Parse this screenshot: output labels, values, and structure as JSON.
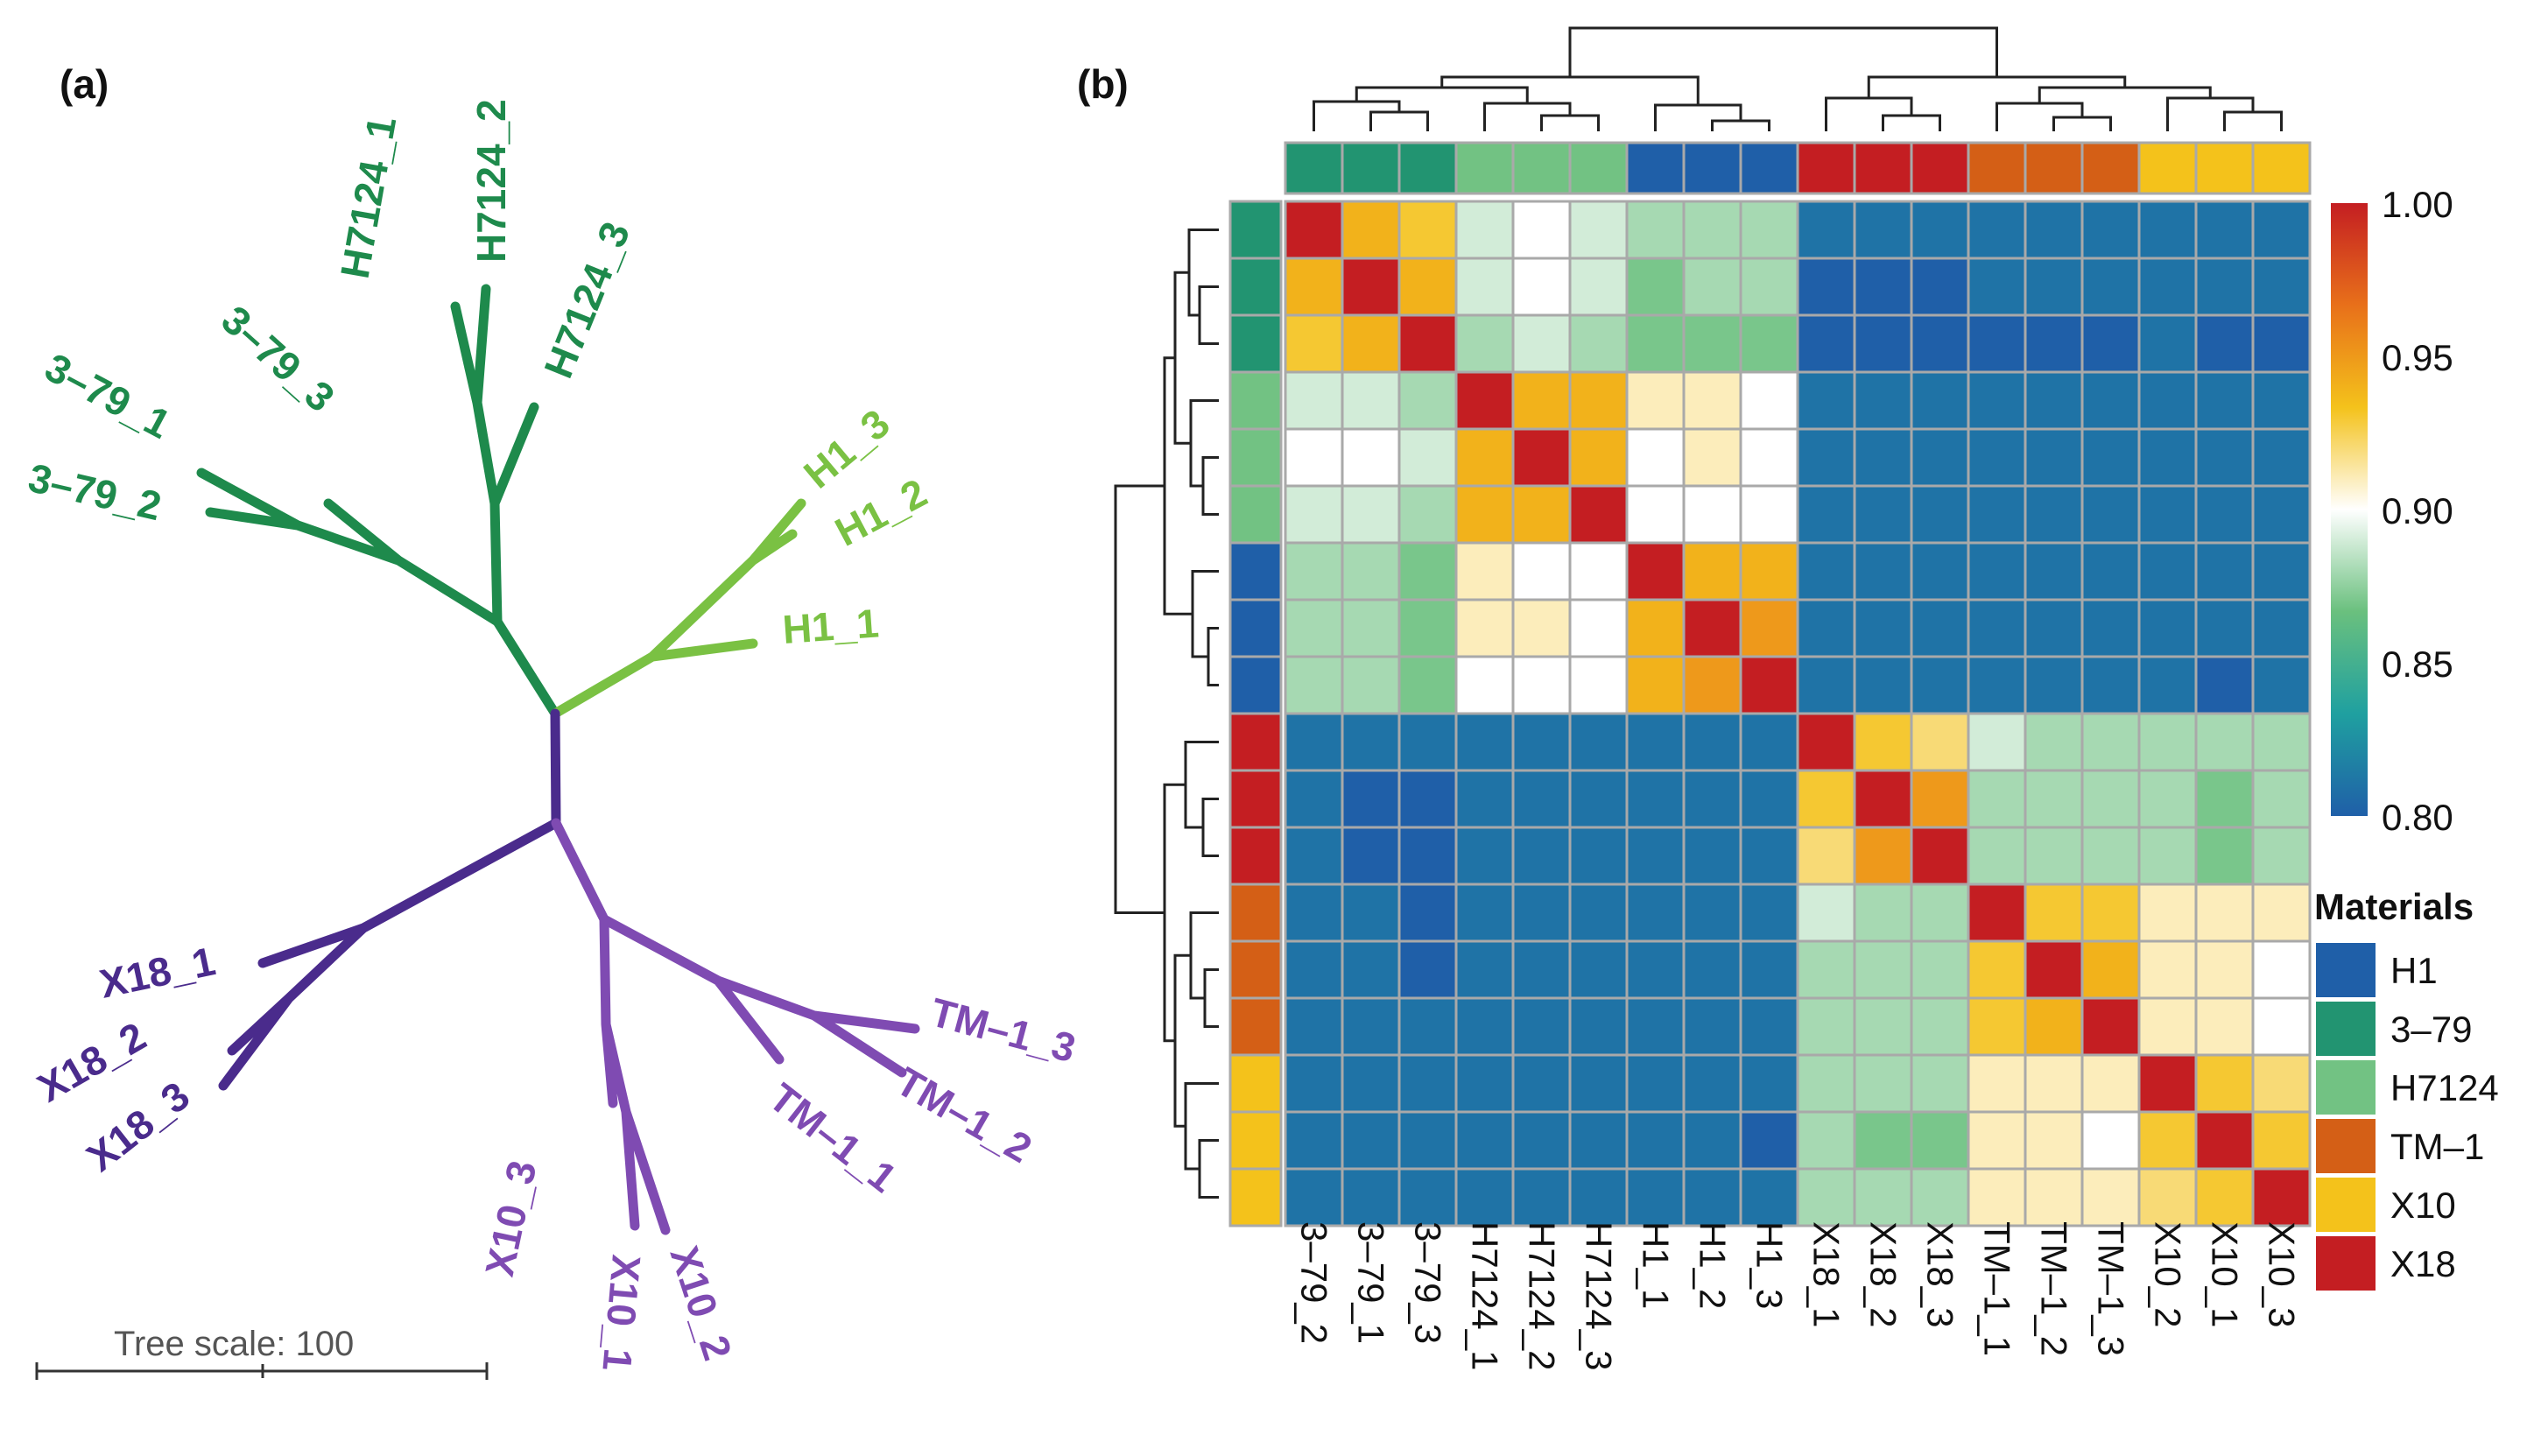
{
  "colors": {
    "H1": "#1f5fa8",
    "3-79": "#229471",
    "H7124": "#72c283",
    "TM-1": "#d45f16",
    "X10": "#f4c21b",
    "X18": "#c41e22",
    "tree_dark_green": "#1e8a4c",
    "tree_light_green": "#7ac143",
    "tree_dark_purple": "#4a2b8c",
    "tree_light_purple": "#7f4bb2"
  },
  "panel_a": {
    "letter": "(a)",
    "scale_label": "Tree scale: 100",
    "leaves": [
      {
        "label": "H7124_1",
        "group": "H7124"
      },
      {
        "label": "H7124_2",
        "group": "H7124"
      },
      {
        "label": "H7124_3",
        "group": "H7124"
      },
      {
        "label": "3–79_1",
        "group": "3-79"
      },
      {
        "label": "3–79_2",
        "group": "3-79"
      },
      {
        "label": "3–79_3",
        "group": "3-79"
      },
      {
        "label": "H1_1",
        "group": "H1"
      },
      {
        "label": "H1_2",
        "group": "H1"
      },
      {
        "label": "H1_3",
        "group": "H1"
      },
      {
        "label": "X18_1",
        "group": "X18"
      },
      {
        "label": "X18_2",
        "group": "X18"
      },
      {
        "label": "X18_3",
        "group": "X18"
      },
      {
        "label": "TM–1_1",
        "group": "TM-1"
      },
      {
        "label": "TM–1_2",
        "group": "TM-1"
      },
      {
        "label": "TM–1_3",
        "group": "TM-1"
      },
      {
        "label": "X10_1",
        "group": "X10"
      },
      {
        "label": "X10_2",
        "group": "X10"
      },
      {
        "label": "X10_3",
        "group": "X10"
      }
    ]
  },
  "chart_data": {
    "type": "heatmap",
    "title": "",
    "panel_letter": "(b)",
    "samples": [
      "3–79_2",
      "3–79_1",
      "3–79_3",
      "H7124_1",
      "H7124_2",
      "H7124_3",
      "H1_1",
      "H1_2",
      "H1_3",
      "X18_1",
      "X18_2",
      "X18_3",
      "TM–1_1",
      "TM–1_2",
      "TM–1_3",
      "X10_2",
      "X10_1",
      "X10_3"
    ],
    "sample_groups": [
      "3-79",
      "3-79",
      "3-79",
      "H7124",
      "H7124",
      "H7124",
      "H1",
      "H1",
      "H1",
      "X18",
      "X18",
      "X18",
      "TM-1",
      "TM-1",
      "TM-1",
      "X10",
      "X10",
      "X10"
    ],
    "values": [
      [
        1.0,
        0.94,
        0.93,
        0.89,
        0.9,
        0.89,
        0.88,
        0.88,
        0.88,
        0.81,
        0.81,
        0.81,
        0.81,
        0.81,
        0.81,
        0.81,
        0.81,
        0.81
      ],
      [
        0.94,
        1.0,
        0.94,
        0.89,
        0.9,
        0.89,
        0.87,
        0.88,
        0.88,
        0.8,
        0.8,
        0.8,
        0.81,
        0.81,
        0.81,
        0.81,
        0.81,
        0.81
      ],
      [
        0.93,
        0.94,
        1.0,
        0.88,
        0.89,
        0.88,
        0.87,
        0.87,
        0.87,
        0.8,
        0.8,
        0.8,
        0.8,
        0.8,
        0.8,
        0.81,
        0.8,
        0.8
      ],
      [
        0.89,
        0.89,
        0.88,
        1.0,
        0.94,
        0.94,
        0.91,
        0.91,
        0.9,
        0.81,
        0.81,
        0.81,
        0.81,
        0.81,
        0.81,
        0.81,
        0.81,
        0.81
      ],
      [
        0.9,
        0.9,
        0.89,
        0.94,
        1.0,
        0.94,
        0.9,
        0.91,
        0.9,
        0.81,
        0.81,
        0.81,
        0.81,
        0.81,
        0.81,
        0.81,
        0.81,
        0.81
      ],
      [
        0.89,
        0.89,
        0.88,
        0.94,
        0.94,
        1.0,
        0.9,
        0.9,
        0.9,
        0.81,
        0.81,
        0.81,
        0.81,
        0.81,
        0.81,
        0.81,
        0.81,
        0.81
      ],
      [
        0.88,
        0.88,
        0.87,
        0.91,
        0.9,
        0.9,
        1.0,
        0.94,
        0.94,
        0.81,
        0.81,
        0.81,
        0.81,
        0.81,
        0.81,
        0.81,
        0.81,
        0.81
      ],
      [
        0.88,
        0.88,
        0.87,
        0.91,
        0.91,
        0.9,
        0.94,
        1.0,
        0.95,
        0.81,
        0.81,
        0.81,
        0.81,
        0.81,
        0.81,
        0.81,
        0.81,
        0.81
      ],
      [
        0.88,
        0.88,
        0.87,
        0.9,
        0.9,
        0.9,
        0.94,
        0.95,
        1.0,
        0.81,
        0.81,
        0.81,
        0.81,
        0.81,
        0.81,
        0.81,
        0.8,
        0.81
      ],
      [
        0.81,
        0.81,
        0.81,
        0.81,
        0.81,
        0.81,
        0.81,
        0.81,
        0.81,
        1.0,
        0.93,
        0.92,
        0.89,
        0.88,
        0.88,
        0.88,
        0.88,
        0.88
      ],
      [
        0.81,
        0.8,
        0.8,
        0.81,
        0.81,
        0.81,
        0.81,
        0.81,
        0.81,
        0.93,
        1.0,
        0.95,
        0.88,
        0.88,
        0.88,
        0.88,
        0.87,
        0.88
      ],
      [
        0.81,
        0.8,
        0.8,
        0.81,
        0.81,
        0.81,
        0.81,
        0.81,
        0.81,
        0.92,
        0.95,
        1.0,
        0.88,
        0.88,
        0.88,
        0.88,
        0.87,
        0.88
      ],
      [
        0.81,
        0.81,
        0.8,
        0.81,
        0.81,
        0.81,
        0.81,
        0.81,
        0.81,
        0.89,
        0.88,
        0.88,
        1.0,
        0.93,
        0.93,
        0.91,
        0.91,
        0.91
      ],
      [
        0.81,
        0.81,
        0.8,
        0.81,
        0.81,
        0.81,
        0.81,
        0.81,
        0.81,
        0.88,
        0.88,
        0.88,
        0.93,
        1.0,
        0.94,
        0.91,
        0.91,
        0.9
      ],
      [
        0.81,
        0.81,
        0.81,
        0.81,
        0.81,
        0.81,
        0.81,
        0.81,
        0.81,
        0.88,
        0.88,
        0.88,
        0.93,
        0.94,
        1.0,
        0.91,
        0.91,
        0.9
      ],
      [
        0.81,
        0.81,
        0.81,
        0.81,
        0.81,
        0.81,
        0.81,
        0.81,
        0.81,
        0.88,
        0.88,
        0.88,
        0.91,
        0.91,
        0.91,
        1.0,
        0.93,
        0.92
      ],
      [
        0.81,
        0.81,
        0.81,
        0.81,
        0.81,
        0.81,
        0.81,
        0.81,
        0.8,
        0.88,
        0.87,
        0.87,
        0.91,
        0.91,
        0.9,
        0.93,
        1.0,
        0.93
      ],
      [
        0.81,
        0.81,
        0.81,
        0.81,
        0.81,
        0.81,
        0.81,
        0.81,
        0.81,
        0.88,
        0.88,
        0.88,
        0.91,
        0.91,
        0.91,
        0.92,
        0.93,
        1.0
      ]
    ],
    "colorbar": {
      "ticks": [
        "1.00",
        "0.95",
        "0.90",
        "0.85",
        "0.80"
      ],
      "range": [
        0.8,
        1.0
      ],
      "stops": [
        "#c41e22",
        "#e8701a",
        "#f4c21b",
        "#ffffff",
        "#6ac07e",
        "#1fa0a0",
        "#1f5fa8"
      ]
    },
    "legend": {
      "title": "Materials",
      "items": [
        {
          "label": "H1",
          "color": "#1f5fa8"
        },
        {
          "label": "3–79",
          "color": "#229471"
        },
        {
          "label": "H7124",
          "color": "#72c283"
        },
        {
          "label": "TM–1",
          "color": "#d45f16"
        },
        {
          "label": "X10",
          "color": "#f4c21b"
        },
        {
          "label": "X18",
          "color": "#c41e22"
        }
      ]
    }
  }
}
